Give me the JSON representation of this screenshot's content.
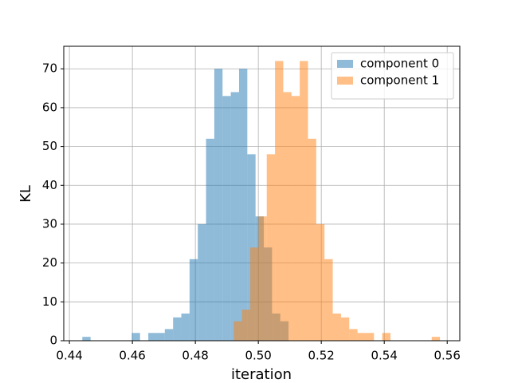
{
  "chart_data": {
    "type": "histogram",
    "xlabel": "iteration",
    "ylabel": "KL",
    "xlim": [
      0.4382,
      0.564
    ],
    "ylim": [
      0,
      75.8
    ],
    "xticks": [
      0.44,
      0.46,
      0.48,
      {
        "value": 0.5,
        "label": "0.50"
      },
      0.52,
      0.54,
      0.56
    ],
    "yticks": [
      0,
      10,
      20,
      30,
      40,
      50,
      60,
      70
    ],
    "grid": true,
    "legend": "upper right",
    "series": [
      {
        "name": "component 0",
        "color": "#1f77b4",
        "bins": [
          0.4441,
          0.44672,
          0.44934,
          0.45196,
          0.45458,
          0.4572,
          0.45982,
          0.46244,
          0.46506,
          0.46768,
          0.4703,
          0.47292,
          0.47554,
          0.47816,
          0.48078,
          0.4834,
          0.48602,
          0.48864,
          0.49126,
          0.49388,
          0.4965,
          0.49912,
          0.50174,
          0.50436,
          0.50698,
          0.5096
        ],
        "values": [
          1,
          0,
          0,
          0,
          0,
          0,
          2,
          0,
          2,
          2,
          3,
          6,
          7,
          21,
          30,
          52,
          70,
          63,
          64,
          70,
          48,
          32,
          24,
          7,
          5
        ]
      },
      {
        "name": "component 1",
        "color": "#ff7f0e",
        "bins": [
          0.4922,
          0.49482,
          0.49744,
          0.50006,
          0.50268,
          0.5053,
          0.50792,
          0.51054,
          0.51316,
          0.51578,
          0.5184,
          0.52102,
          0.52364,
          0.52626,
          0.52888,
          0.5315,
          0.53412,
          0.53674,
          0.53936,
          0.54198,
          0.5446,
          0.54722,
          0.54984,
          0.55246,
          0.55508,
          0.5577
        ],
        "values": [
          5,
          8,
          24,
          32,
          48,
          72,
          64,
          63,
          72,
          52,
          30,
          21,
          7,
          6,
          3,
          2,
          2,
          0,
          2,
          0,
          0,
          0,
          0,
          0,
          1
        ]
      }
    ]
  }
}
